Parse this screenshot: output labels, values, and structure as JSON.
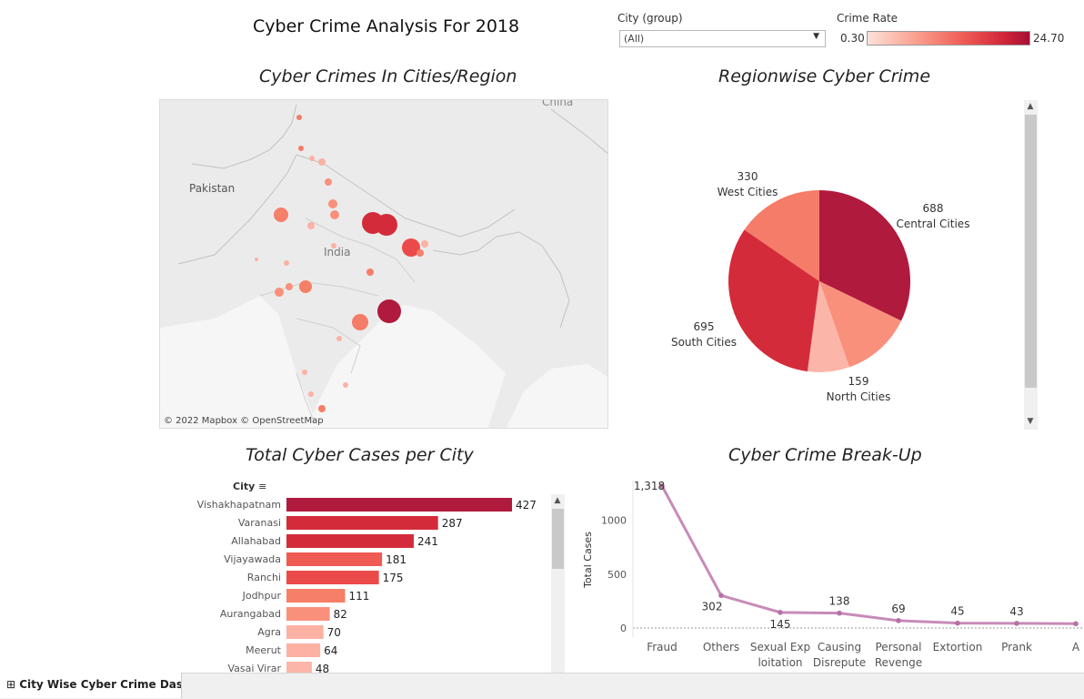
{
  "dashboard": {
    "title": "Cyber Crime Analysis For 2018"
  },
  "filters": {
    "city_group_label": "City (group)",
    "city_group_value": "(All)",
    "crime_rate_label": "Crime Rate",
    "crime_rate_min": "0.30",
    "crime_rate_max": "24.70"
  },
  "colors": {
    "scale": [
      "#fde1da",
      "#f9a08f",
      "#ef5a54",
      "#cf2439",
      "#a50f36"
    ],
    "line": "#c78bb8"
  },
  "map": {
    "title": "Cyber Crimes In Cities/Region",
    "labels": {
      "pakistan": "Pakistan",
      "india": "India",
      "china": "China"
    },
    "attribution": "© 2022 Mapbox © OpenStreetMap"
  },
  "tab": {
    "label": "City Wise Cyber Crime Das..."
  },
  "chart_data": [
    {
      "type": "pie",
      "title": "Regionwise Cyber Crime",
      "slices": [
        {
          "label": "Central Cities",
          "value": 688,
          "color": "#b01a3d"
        },
        {
          "label": "North Cities",
          "value": 159,
          "color": "#fcb6a9"
        },
        {
          "label": "South Cities",
          "value": 695,
          "color": "#d42b3b"
        },
        {
          "label": "West Cities",
          "value": 330,
          "color": "#f47c68"
        }
      ],
      "extra_slice": {
        "value_share": 0.125,
        "color": "#f9907c"
      }
    },
    {
      "type": "bar",
      "title": "Total Cyber Cases per City",
      "axis_header": "City",
      "categories": [
        "Vishakhapatnam",
        "Varanasi",
        "Allahabad",
        "Vijayawada",
        "Ranchi",
        "Jodhpur",
        "Aurangabad",
        "Agra",
        "Meerut",
        "Vasai Virar"
      ],
      "values": [
        427,
        287,
        241,
        181,
        175,
        111,
        82,
        70,
        64,
        48
      ],
      "colors": [
        "#b01a3d",
        "#d42b3b",
        "#d42b3b",
        "#ef5a54",
        "#ea4b4a",
        "#f67f68",
        "#f9907c",
        "#fcb1a3",
        "#fcb1a3",
        "#fcb6a9"
      ],
      "xlim": [
        0,
        427
      ]
    },
    {
      "type": "line",
      "title": "Cyber Crime Break-Up",
      "ylabel": "Total Cases",
      "categories": [
        "Fraud",
        "Others",
        "Sexual Exploitation",
        "Causing Disrepute",
        "Personal Revenge",
        "Extortion",
        "Prank",
        "A"
      ],
      "category_lines": [
        [
          "Fraud"
        ],
        [
          "Others"
        ],
        [
          "Sexual Exp",
          "loitation"
        ],
        [
          "Causing",
          "Disrepute"
        ],
        [
          "Personal",
          "Revenge"
        ],
        [
          "Extortion"
        ],
        [
          "Prank"
        ],
        [
          "A"
        ]
      ],
      "values": [
        1318,
        302,
        145,
        138,
        69,
        45,
        43,
        40
      ],
      "value_labels": [
        "1,318",
        "302",
        "145",
        "138",
        "69",
        "45",
        "43",
        ""
      ],
      "yticks": [
        0,
        500,
        1000
      ],
      "ylim": [
        0,
        1318
      ]
    }
  ]
}
